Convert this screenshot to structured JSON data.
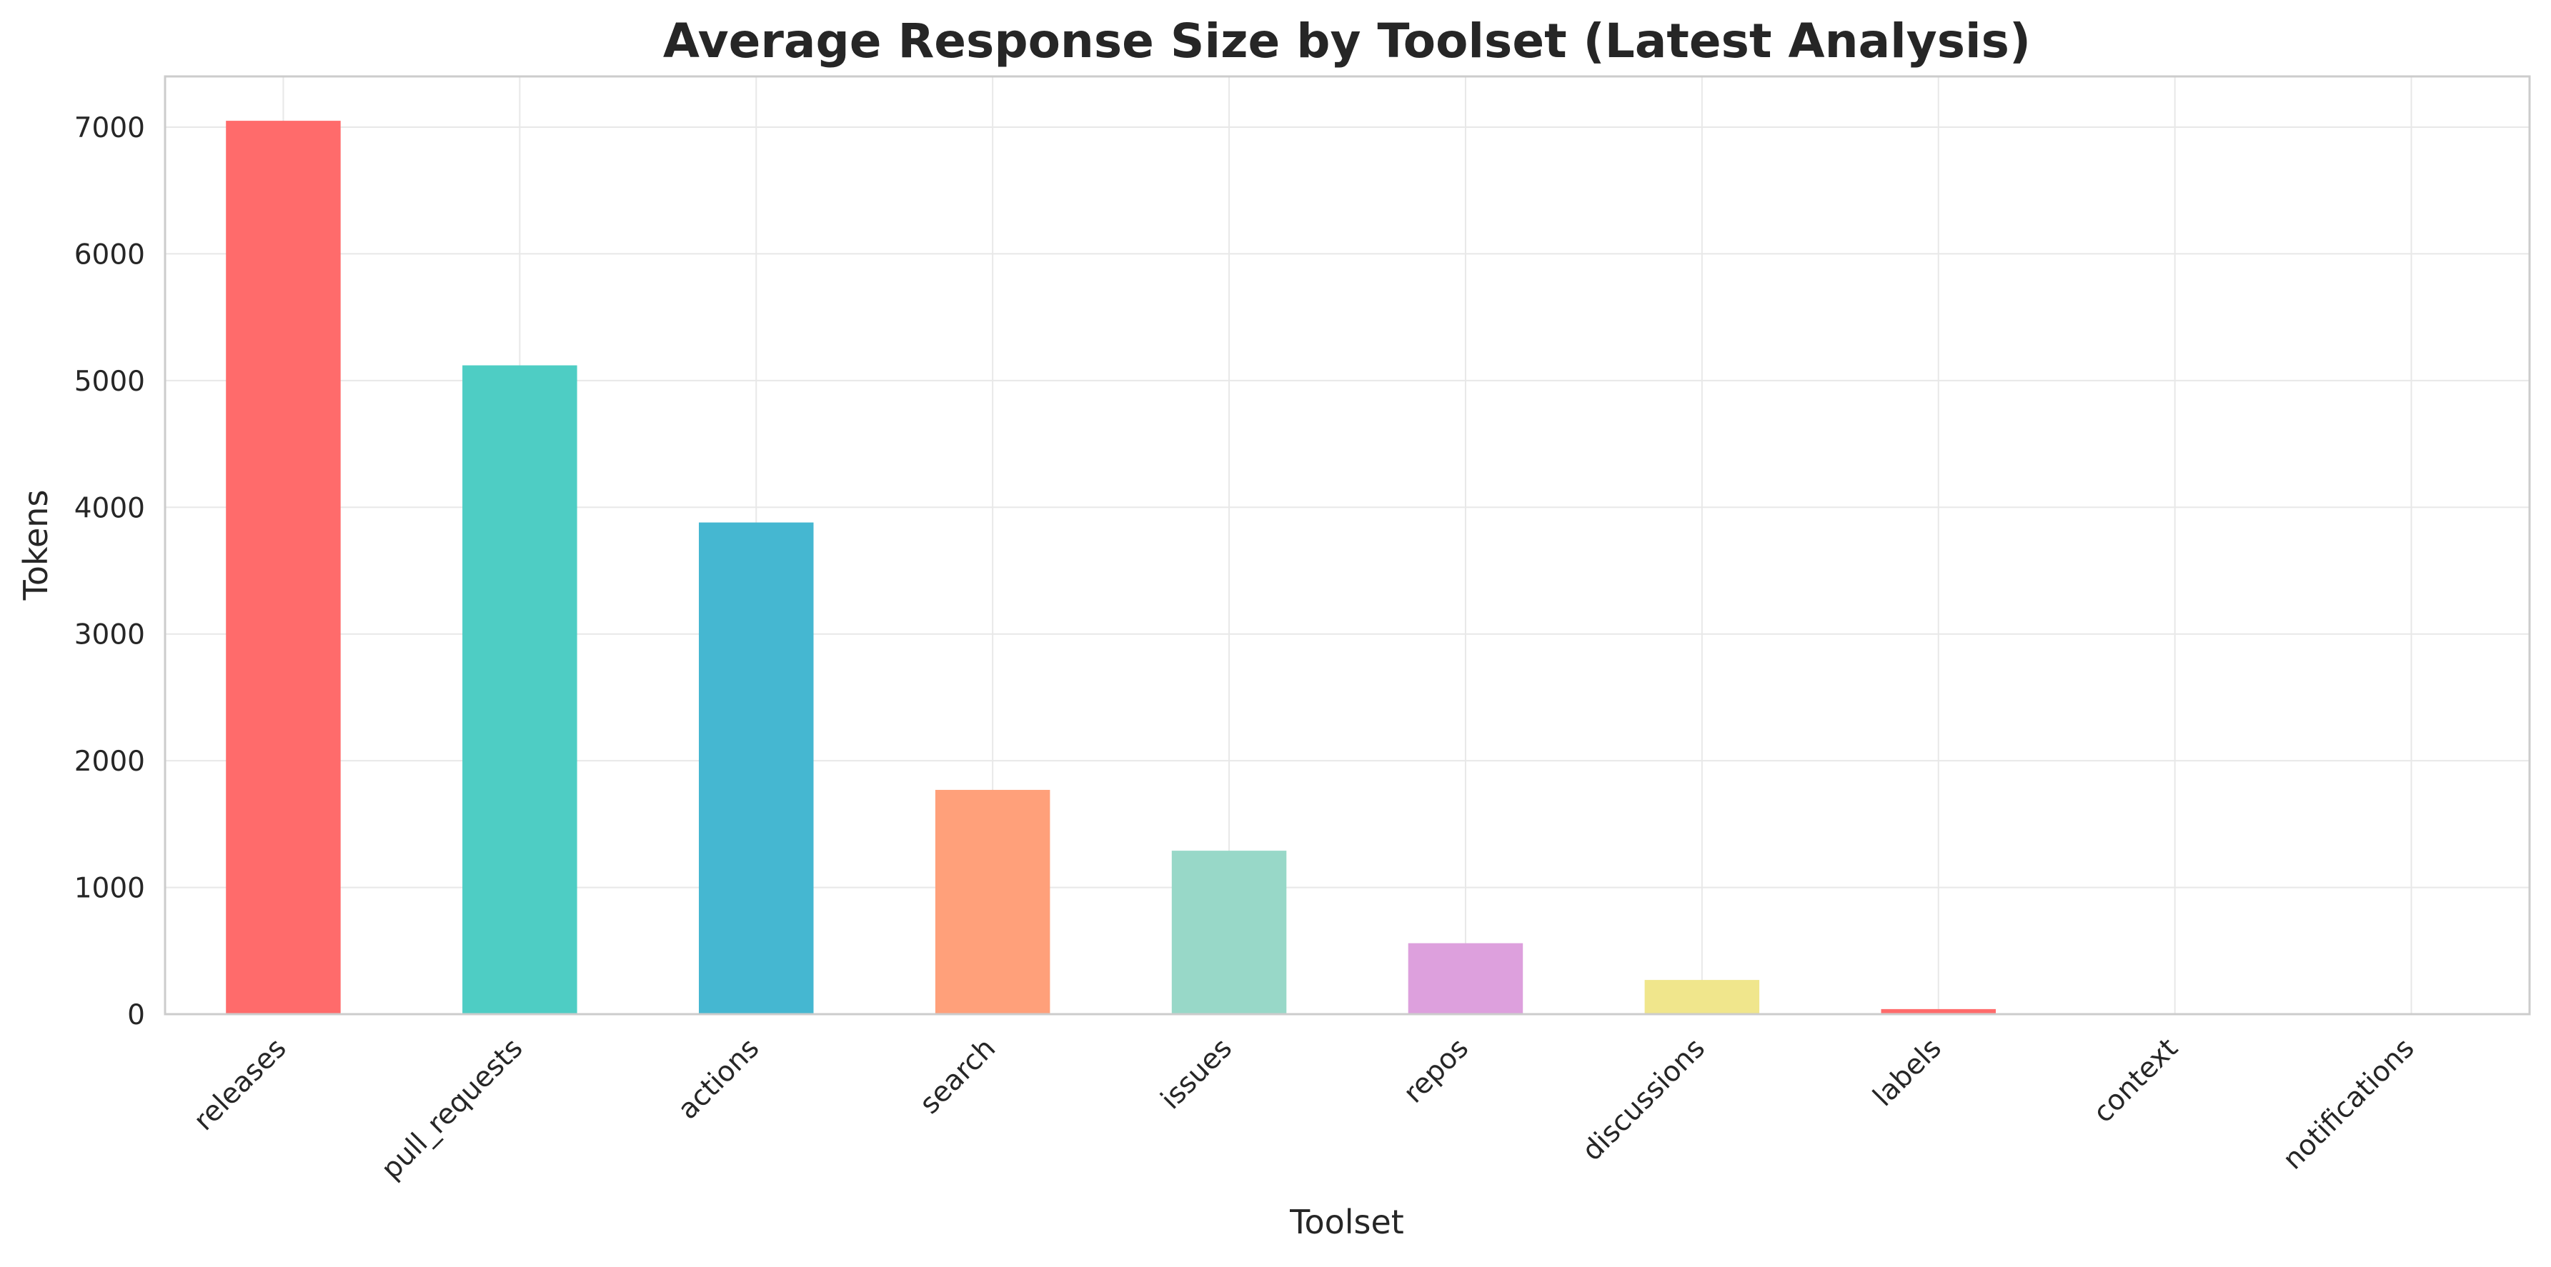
{
  "chart_data": {
    "type": "bar",
    "title": "Average Response Size by Toolset (Latest Analysis)",
    "xlabel": "Toolset",
    "ylabel": "Tokens",
    "categories": [
      "releases",
      "pull_requests",
      "actions",
      "search",
      "issues",
      "repos",
      "discussions",
      "labels",
      "context",
      "notifications"
    ],
    "values": [
      7050,
      5120,
      3880,
      1770,
      1290,
      560,
      270,
      40,
      0,
      0
    ],
    "colors": [
      "#FF6B6B",
      "#4ECDC4",
      "#45B7D1",
      "#FFA07A",
      "#98D8C8",
      "#DDA0DD",
      "#F0E68C",
      "#FF6B6B",
      "#4ECDC4",
      "#45B7D1"
    ],
    "ylim": [
      0,
      7400
    ],
    "yticks": [
      0,
      1000,
      2000,
      3000,
      4000,
      5000,
      6000,
      7000
    ],
    "grid": true,
    "legend": "none"
  }
}
